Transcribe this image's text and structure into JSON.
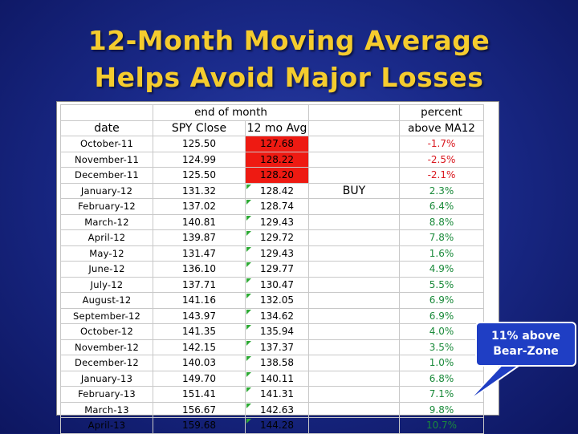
{
  "title": {
    "line1": "12-Month Moving Average",
    "line2": "Helps Avoid Major Losses"
  },
  "table": {
    "header_row1": {
      "group": "end of month",
      "percent": "percent"
    },
    "header_row2": {
      "date": "date",
      "close": "SPY Close",
      "avg": "12 mo Avg",
      "above": "above MA12"
    },
    "rows": [
      {
        "date": "October-11",
        "close": "125.50",
        "avg": "127.68",
        "signal": "",
        "pct": "-1.7%",
        "below": true
      },
      {
        "date": "November-11",
        "close": "124.99",
        "avg": "128.22",
        "signal": "",
        "pct": "-2.5%",
        "below": true
      },
      {
        "date": "December-11",
        "close": "125.50",
        "avg": "128.20",
        "signal": "",
        "pct": "-2.1%",
        "below": true
      },
      {
        "date": "January-12",
        "close": "131.32",
        "avg": "128.42",
        "signal": "BUY",
        "pct": "2.3%",
        "below": false
      },
      {
        "date": "February-12",
        "close": "137.02",
        "avg": "128.74",
        "signal": "",
        "pct": "6.4%",
        "below": false
      },
      {
        "date": "March-12",
        "close": "140.81",
        "avg": "129.43",
        "signal": "",
        "pct": "8.8%",
        "below": false
      },
      {
        "date": "April-12",
        "close": "139.87",
        "avg": "129.72",
        "signal": "",
        "pct": "7.8%",
        "below": false
      },
      {
        "date": "May-12",
        "close": "131.47",
        "avg": "129.43",
        "signal": "",
        "pct": "1.6%",
        "below": false
      },
      {
        "date": "June-12",
        "close": "136.10",
        "avg": "129.77",
        "signal": "",
        "pct": "4.9%",
        "below": false
      },
      {
        "date": "July-12",
        "close": "137.71",
        "avg": "130.47",
        "signal": "",
        "pct": "5.5%",
        "below": false
      },
      {
        "date": "August-12",
        "close": "141.16",
        "avg": "132.05",
        "signal": "",
        "pct": "6.9%",
        "below": false
      },
      {
        "date": "September-12",
        "close": "143.97",
        "avg": "134.62",
        "signal": "",
        "pct": "6.9%",
        "below": false
      },
      {
        "date": "October-12",
        "close": "141.35",
        "avg": "135.94",
        "signal": "",
        "pct": "4.0%",
        "below": false
      },
      {
        "date": "November-12",
        "close": "142.15",
        "avg": "137.37",
        "signal": "",
        "pct": "3.5%",
        "below": false
      },
      {
        "date": "December-12",
        "close": "140.03",
        "avg": "138.58",
        "signal": "",
        "pct": "1.0%",
        "below": false
      },
      {
        "date": "January-13",
        "close": "149.70",
        "avg": "140.11",
        "signal": "",
        "pct": "6.8%",
        "below": false
      },
      {
        "date": "February-13",
        "close": "151.41",
        "avg": "141.31",
        "signal": "",
        "pct": "7.1%",
        "below": false
      },
      {
        "date": "March-13",
        "close": "156.67",
        "avg": "142.63",
        "signal": "",
        "pct": "9.8%",
        "below": false
      },
      {
        "date": "April-13",
        "close": "159.68",
        "avg": "144.28",
        "signal": "",
        "pct": "10.7%",
        "below": false
      }
    ]
  },
  "callout": {
    "line1": "11% above",
    "line2": "Bear-Zone"
  },
  "colors": {
    "title": "#f5cc2e",
    "below_fill": "#ee1a12",
    "negative_text": "#d9161d",
    "positive_text": "#1a8a3a",
    "callout_fill": "#1f3ec4"
  }
}
